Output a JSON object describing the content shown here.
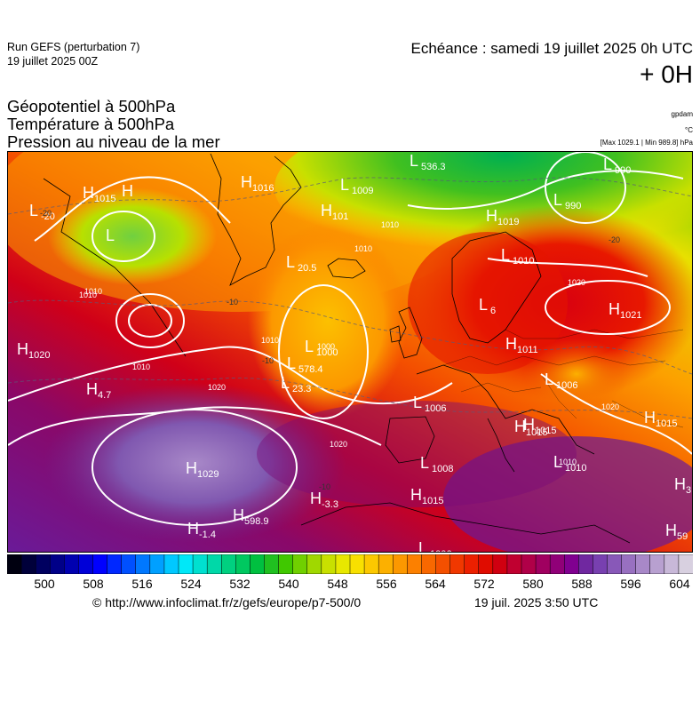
{
  "header": {
    "run_name": "Run GEFS (perturbation 7)",
    "run_date": "19 juillet 2025 00Z",
    "echeance": "Echéance : samedi 19 juillet 2025 0h UTC",
    "lead_time": "+ 0H"
  },
  "parameters": {
    "line1": "Géopotentiel à 500hPa",
    "line2": "Température à 500hPa",
    "line3": "Pression au niveau de la mer",
    "unit1": "gpdam",
    "unit2": "°C",
    "unit3": "[Max 1029.1 | Min 989.8] hPa"
  },
  "colorbar": {
    "labels": [
      "500",
      "508",
      "516",
      "524",
      "532",
      "540",
      "548",
      "556",
      "564",
      "572",
      "580",
      "588",
      "596",
      "604"
    ],
    "colors": [
      "#000010",
      "#00003a",
      "#000060",
      "#000088",
      "#0000b0",
      "#0000d8",
      "#0000ff",
      "#0028ff",
      "#0050ff",
      "#0078ff",
      "#00a0ff",
      "#00c8ff",
      "#00e8f8",
      "#00e0d0",
      "#00d8a8",
      "#00d080",
      "#00c860",
      "#00c040",
      "#20c020",
      "#40c800",
      "#70d000",
      "#a0d800",
      "#c8e000",
      "#e8e800",
      "#f8e000",
      "#fcc800",
      "#fcb000",
      "#fc9800",
      "#fc8000",
      "#f86800",
      "#f45000",
      "#f03800",
      "#ec2000",
      "#e00c00",
      "#d00010",
      "#c00030",
      "#b00048",
      "#a00060",
      "#900078",
      "#800090",
      "#7028a0",
      "#7840b0",
      "#8858b8",
      "#9870c0",
      "#a888c8",
      "#b8a0d0",
      "#c8b8d8",
      "#d8d0e0"
    ]
  },
  "map_labels": {
    "highs": [
      {
        "letter": "H",
        "value": "1015"
      },
      {
        "letter": "H",
        "value": ""
      },
      {
        "letter": "H",
        "value": "1016"
      },
      {
        "letter": "H",
        "value": "1019"
      },
      {
        "letter": "H",
        "value": "1021"
      },
      {
        "letter": "H",
        "value": "1020"
      },
      {
        "letter": "H",
        "value": "4.7"
      },
      {
        "letter": "H",
        "value": "1029"
      },
      {
        "letter": "H",
        "value": "598.9"
      },
      {
        "letter": "H",
        "value": "-3.3"
      },
      {
        "letter": "H",
        "value": "1015"
      },
      {
        "letter": "H",
        "value": "1015"
      },
      {
        "letter": "H",
        "value": "1015"
      },
      {
        "letter": "H",
        "value": "-1.4"
      },
      {
        "letter": "H",
        "value": "1015"
      },
      {
        "letter": "H",
        "value": "101"
      },
      {
        "letter": "H",
        "value": "59"
      },
      {
        "letter": "H",
        "value": "3"
      },
      {
        "letter": "H",
        "value": "1011"
      }
    ],
    "lows": [
      {
        "letter": "L",
        "value": "536.3"
      },
      {
        "letter": "L",
        "value": "990"
      },
      {
        "letter": "L",
        "value": "1009"
      },
      {
        "letter": "L",
        "value": "1010"
      },
      {
        "letter": "L",
        "value": "20.5"
      },
      {
        "letter": "L",
        "value": "1000"
      },
      {
        "letter": "L",
        "value": "578.4"
      },
      {
        "letter": "L",
        "value": "23.3"
      },
      {
        "letter": "L",
        "value": "1006"
      },
      {
        "letter": "L",
        "value": "1008"
      },
      {
        "letter": "L",
        "value": "1006"
      },
      {
        "letter": "L",
        "value": "1006"
      },
      {
        "letter": "L",
        "value": "990"
      },
      {
        "letter": "L",
        "value": "1010"
      },
      {
        "letter": "L",
        "value": ""
      },
      {
        "letter": "L",
        "value": "6"
      },
      {
        "letter": "L",
        "value": "-20"
      }
    ],
    "isobars": [
      "1010",
      "1010",
      "1010",
      "1020",
      "1020",
      "1020",
      "1020",
      "1010",
      "1010",
      "1010",
      "1010",
      "1000"
    ],
    "isotherms": [
      "-20",
      "-20",
      "-10",
      "-10",
      "-10"
    ]
  },
  "footer": {
    "source": "© http://www.infoclimat.fr/z/gefs/europe/p7-500/0",
    "timestamp": "19 juil. 2025  3:50 UTC"
  }
}
